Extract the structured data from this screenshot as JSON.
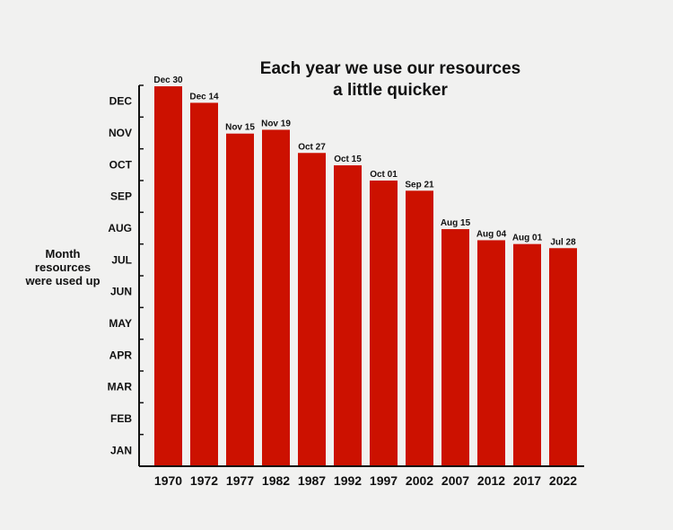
{
  "chart_data": {
    "type": "bar",
    "title": "Each year we use our resources a little quicker",
    "title_lines": [
      "Each year we use our resources",
      "a little quicker"
    ],
    "xlabel": "",
    "ylabel": "Month resources were used up",
    "ylabel_lines": [
      "Month",
      "resources",
      "were used up"
    ],
    "y_ticks": [
      "JAN",
      "FEB",
      "MAR",
      "APR",
      "MAY",
      "JUN",
      "JUL",
      "AUG",
      "SEP",
      "OCT",
      "NOV",
      "DEC"
    ],
    "ylim": [
      0,
      12
    ],
    "y_unit": "months elapsed in the year",
    "categories": [
      "1970",
      "1972",
      "1977",
      "1982",
      "1987",
      "1992",
      "1997",
      "2002",
      "2007",
      "2012",
      "2017",
      "2022"
    ],
    "values": [
      11.97,
      11.45,
      10.48,
      10.6,
      9.87,
      9.48,
      9.0,
      8.68,
      7.47,
      7.12,
      7.0,
      6.87
    ],
    "data_labels": [
      "Dec 30",
      "Dec 14",
      "Nov 15",
      "Nov 19",
      "Oct 27",
      "Oct 15",
      "Oct 01",
      "Sep 21",
      "Aug 15",
      "Aug 04",
      "Aug 01",
      "Jul 28"
    ],
    "grid": false,
    "legend": "none",
    "bar_color": "#cc1100",
    "axis_color": "#111111",
    "background": "#f1f1f0"
  }
}
